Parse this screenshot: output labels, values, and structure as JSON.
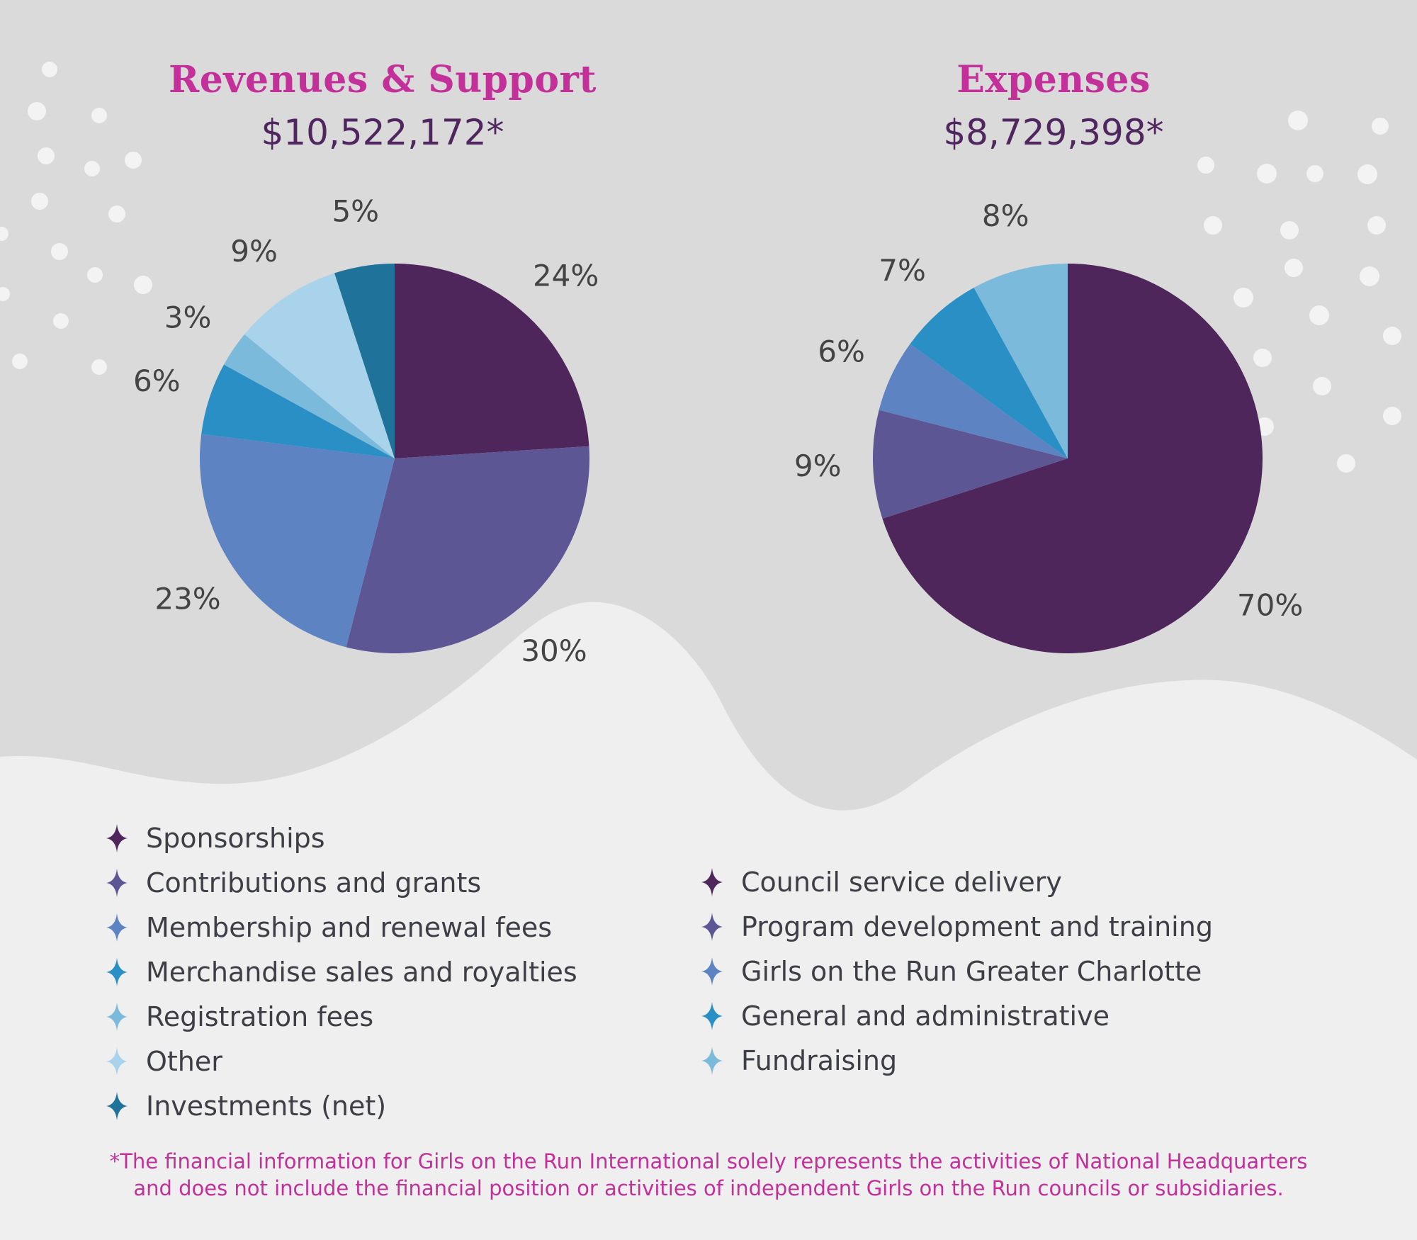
{
  "colors": {
    "title": "#c4309a",
    "total": "#4f275e",
    "label": "#444444",
    "background_top": "#dadada",
    "background_bottom": "#efefef"
  },
  "revenues": {
    "title": "Revenues & Support",
    "total": "$10,522,172*"
  },
  "expenses": {
    "title": "Expenses",
    "total": "$8,729,398*"
  },
  "legend_icon": "four-point-star-icon",
  "chart_data": [
    {
      "type": "pie",
      "title": "Revenues & Support",
      "subtitle": "$10,522,172*",
      "start_angle": "12 o'clock, clockwise",
      "categories": [
        "Sponsorships",
        "Contributions and grants",
        "Membership and renewal fees",
        "Merchandise sales and royalties",
        "Registration fees",
        "Other",
        "Investments (net)"
      ],
      "values": [
        24,
        30,
        23,
        6,
        3,
        9,
        5
      ],
      "labels": [
        "24%",
        "30%",
        "23%",
        "6%",
        "3%",
        "9%",
        "5%"
      ],
      "colors": [
        "#4f265c",
        "#5c5694",
        "#5d83c2",
        "#2a8fc5",
        "#7cbadb",
        "#a9d3ea",
        "#1f7299"
      ],
      "legend_position": "bottom"
    },
    {
      "type": "pie",
      "title": "Expenses",
      "subtitle": "$8,729,398*",
      "start_angle": "12 o'clock, clockwise",
      "categories": [
        "Council service delivery",
        "Program development and training",
        "Girls on the Run Greater Charlotte",
        "General and administrative",
        "Fundraising"
      ],
      "values": [
        70,
        9,
        6,
        7,
        8
      ],
      "labels": [
        "70%",
        "9%",
        "6%",
        "7%",
        "8%"
      ],
      "colors": [
        "#4f265c",
        "#5c5694",
        "#5d83c2",
        "#2a8fc5",
        "#7cbadb"
      ],
      "legend_position": "bottom"
    }
  ],
  "footnote": {
    "line1": "*The financial information for Girls on the Run International solely represents the activities of National Headquarters",
    "line2": "and does not include the financial position or activities of independent Girls on the Run councils or subsidiaries."
  }
}
